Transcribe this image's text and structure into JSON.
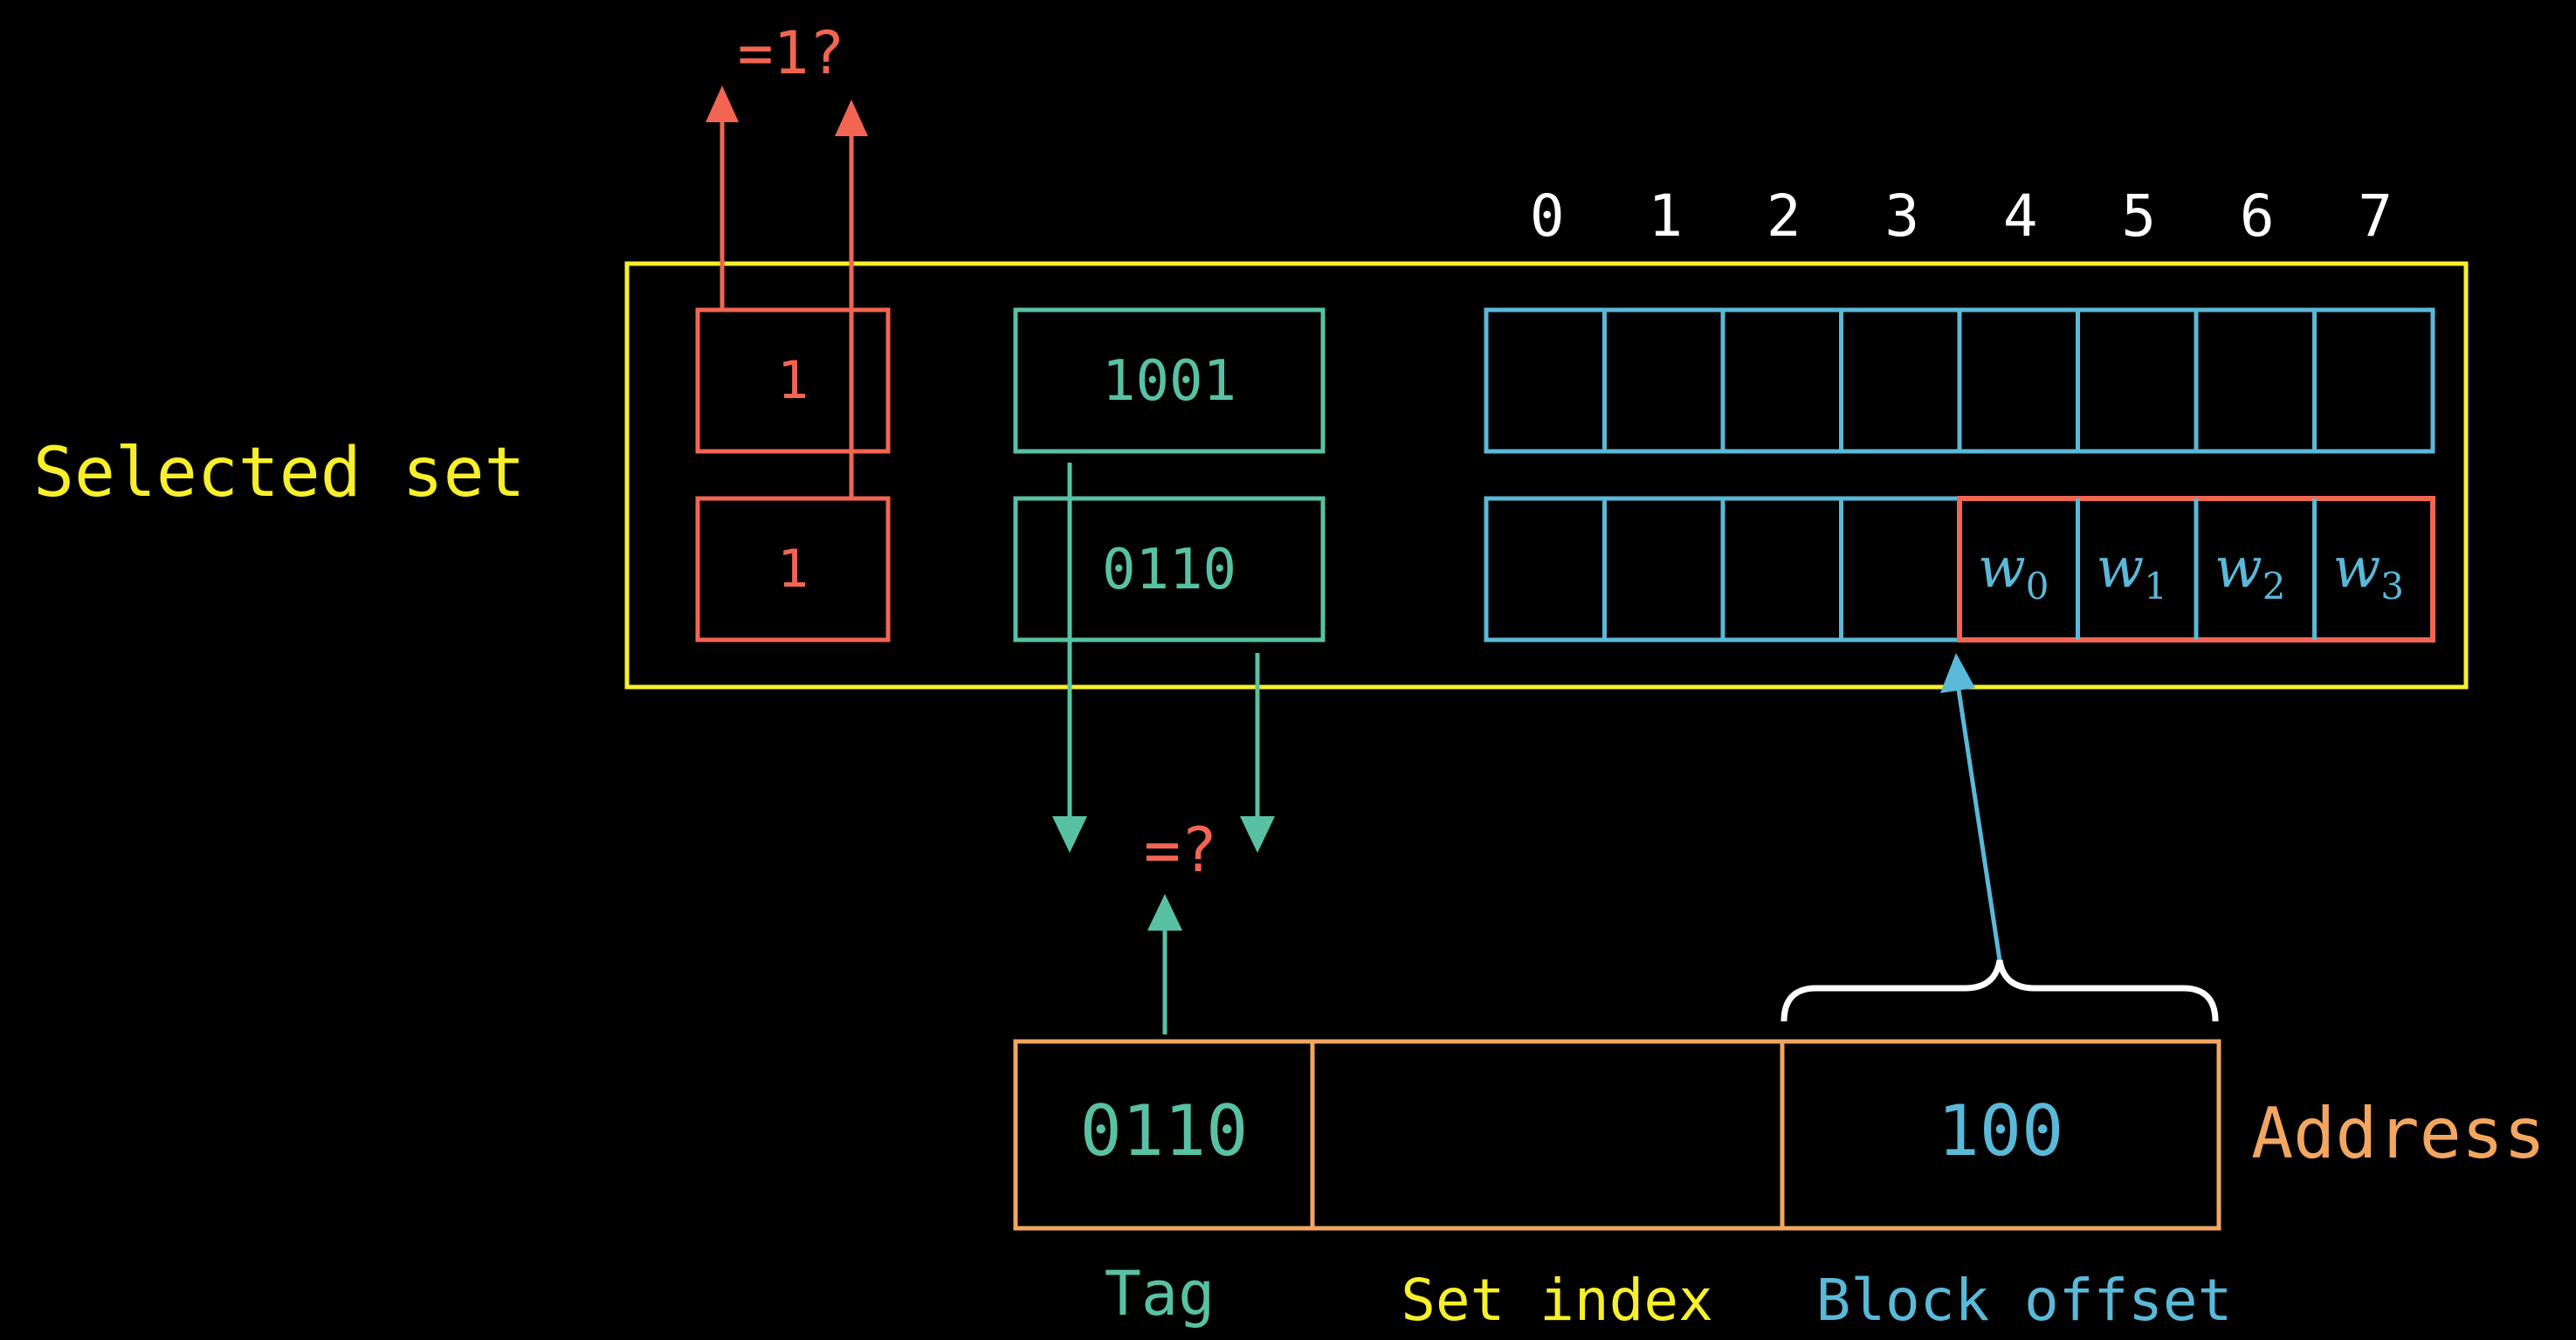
{
  "colors": {
    "background": "#000000",
    "yellow": "#f7ef2b",
    "red": "#f26552",
    "teal": "#58c1a4",
    "blue": "#5ab9d8",
    "orange": "#f2a660",
    "white": "#ffffff"
  },
  "selected_set": {
    "label": "Selected set",
    "lines": [
      {
        "valid": "1",
        "tag": "1001"
      },
      {
        "valid": "1",
        "tag": "0110"
      }
    ],
    "byte_indices": [
      "0",
      "1",
      "2",
      "3",
      "4",
      "5",
      "6",
      "7"
    ],
    "words": [
      {
        "base": "w",
        "sub": "0"
      },
      {
        "base": "w",
        "sub": "1"
      },
      {
        "base": "w",
        "sub": "2"
      },
      {
        "base": "w",
        "sub": "3"
      }
    ]
  },
  "checks": {
    "valid_check": "=1?",
    "tag_check": "=?"
  },
  "address": {
    "label": "Address",
    "tag_value": "0110",
    "set_index_value": "",
    "block_offset_value": "100",
    "field_labels": {
      "tag": "Tag",
      "set_index": "Set index",
      "block_offset": "Block offset"
    }
  }
}
